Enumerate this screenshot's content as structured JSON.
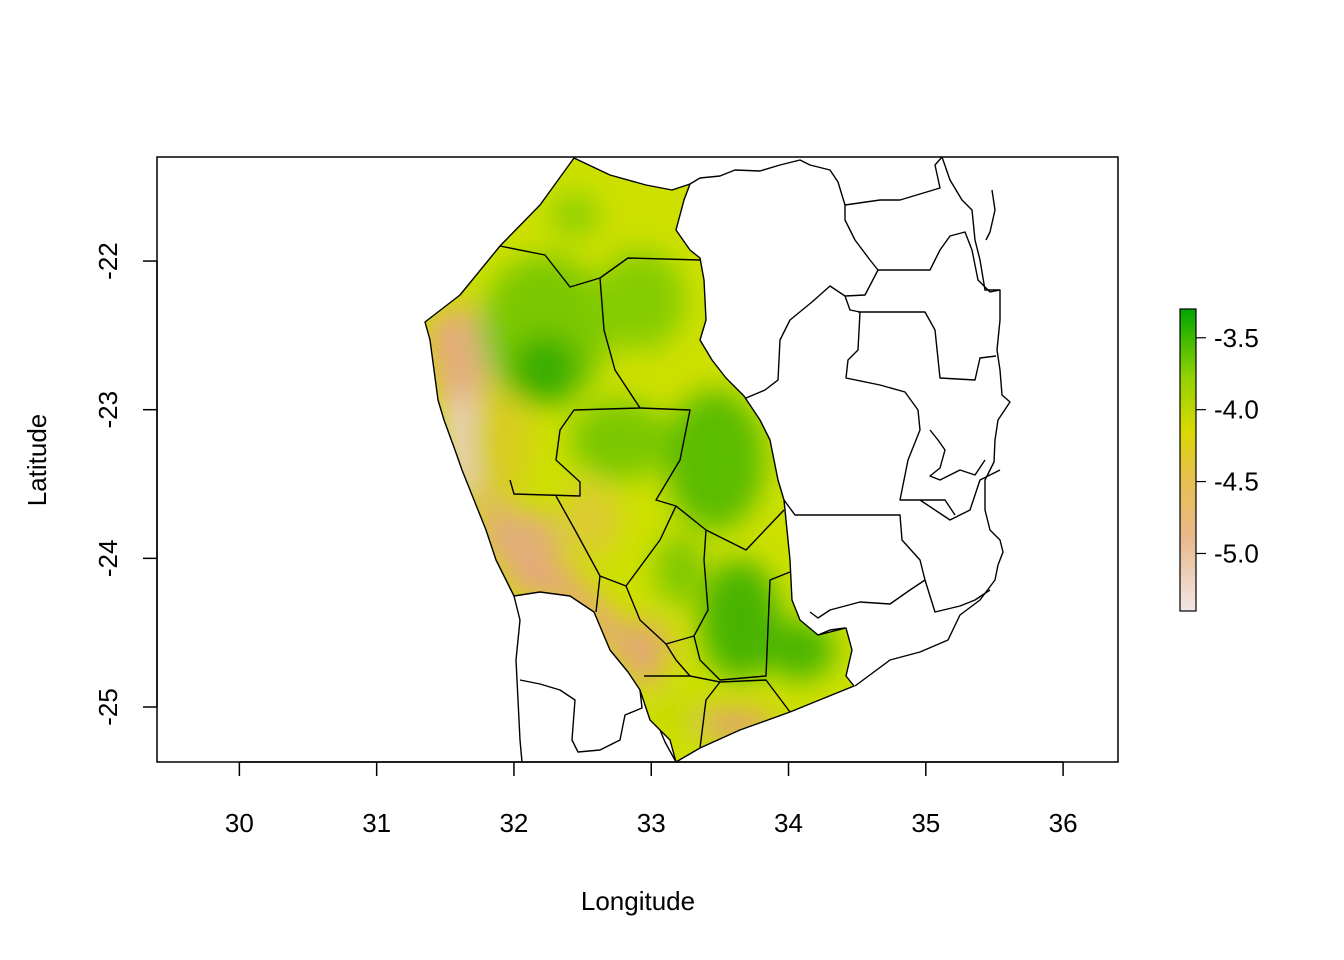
{
  "chart_data": {
    "type": "heatmap",
    "title": "",
    "xlabel": "Longitude",
    "ylabel": "Latitude",
    "xlim": [
      29.4,
      36.4
    ],
    "ylim": [
      -25.37,
      -21.3
    ],
    "x_ticks": [
      {
        "value": 30,
        "label": "30"
      },
      {
        "value": 31,
        "label": "31"
      },
      {
        "value": 32,
        "label": "32"
      },
      {
        "value": 33,
        "label": "33"
      },
      {
        "value": 34,
        "label": "34"
      },
      {
        "value": 35,
        "label": "35"
      },
      {
        "value": 36,
        "label": "36"
      }
    ],
    "y_ticks": [
      {
        "value": -22,
        "label": "-22"
      },
      {
        "value": -23,
        "label": "-23"
      },
      {
        "value": -24,
        "label": "-24"
      },
      {
        "value": -25,
        "label": "-25"
      }
    ],
    "legend": {
      "placement": "right",
      "range": [
        -5.4,
        -3.3
      ],
      "ticks": [
        {
          "value": -3.5,
          "label": "-3.5"
        },
        {
          "value": -4.0,
          "label": "-4.0"
        },
        {
          "value": -4.5,
          "label": "-4.5"
        },
        {
          "value": -5.0,
          "label": "-5.0"
        }
      ],
      "colors": [
        "#f2e6e6",
        "#e8b88a",
        "#e6c14a",
        "#d9d900",
        "#8fd100",
        "#00a600"
      ]
    },
    "grid": false
  }
}
